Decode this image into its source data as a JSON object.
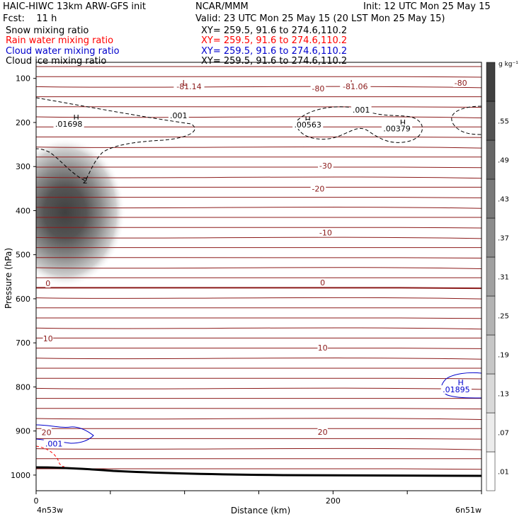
{
  "header": {
    "model": "HAIC-HIWC 13km ARW-GFS init",
    "org": "NCAR/MMM",
    "init": "Init: 12 UTC Mon 25 May 15",
    "fcst": "Fcst:    11 h",
    "valid": "Valid: 23 UTC Mon 25 May 15 (20 LST Mon 25 May 15)",
    "rows": [
      {
        "name": "Snow mixing ratio",
        "xy": "XY= 259.5, 91.6 to 274.6,110.2",
        "color": "#000000"
      },
      {
        "name": "Rain water mixing ratio",
        "xy": "XY= 259.5, 91.6 to 274.6,110.2",
        "color": "#ff0000"
      },
      {
        "name": "Cloud water mixing ratio",
        "xy": "XY= 259.5, 91.6 to 274.6,110.2",
        "color": "#0000cc"
      },
      {
        "name": "Cloud ice mixing ratio",
        "xy": "XY= 259.5, 91.6 to 274.6,110.2",
        "color": "#000000"
      }
    ]
  },
  "colorbar": {
    "unit": "g kg⁻¹",
    "levels": [
      ".01",
      ".07",
      ".13",
      ".19",
      ".25",
      ".31",
      ".37",
      ".43",
      ".49",
      ".55"
    ]
  },
  "chart_data": {
    "type": "contour cross-section",
    "xlabel": "Distance (km)",
    "ylabel": "Pressure (hPa)",
    "xlim": [
      0,
      300
    ],
    "ylim": [
      1050,
      50
    ],
    "y_scale": "log-pressure",
    "x_ticks": [
      0,
      200
    ],
    "y_ticks": [
      100,
      200,
      300,
      400,
      500,
      600,
      700,
      800,
      900,
      1000
    ],
    "x_endpoints": [
      "4n53w",
      "6n51w"
    ],
    "temperature_labels": [
      {
        "text": "-81.14",
        "x": 103,
        "p": 118
      },
      {
        "text": "L",
        "x": 100,
        "p": 110
      },
      {
        "text": "-80",
        "x": 190,
        "p": 123
      },
      {
        "text": "L",
        "x": 213,
        "p": 110
      },
      {
        "text": "-81.06",
        "x": 215,
        "p": 118
      },
      {
        "text": "-80",
        "x": 286,
        "p": 110
      },
      {
        "text": "-30",
        "x": 195,
        "p": 298
      },
      {
        "text": "-20",
        "x": 190,
        "p": 350
      },
      {
        "text": "-10",
        "x": 195,
        "p": 450
      },
      {
        "text": "0",
        "x": 8,
        "p": 565
      },
      {
        "text": "0",
        "x": 193,
        "p": 563
      },
      {
        "text": "10",
        "x": 8,
        "p": 690
      },
      {
        "text": "10",
        "x": 193,
        "p": 711
      },
      {
        "text": "20",
        "x": 7,
        "p": 903
      },
      {
        "text": "20",
        "x": 193,
        "p": 902
      }
    ],
    "ice_labels": [
      {
        "text": "H",
        "x": 27,
        "p": 189
      },
      {
        "text": ".01698",
        "x": 22,
        "p": 203
      },
      {
        "text": ".001",
        "x": 96,
        "p": 184
      },
      {
        "text": "H",
        "x": 183,
        "p": 193
      },
      {
        "text": ".00563",
        "x": 183,
        "p": 205
      },
      {
        "text": ".001",
        "x": 219,
        "p": 171
      },
      {
        "text": "H",
        "x": 247,
        "p": 200
      },
      {
        "text": ".00379",
        "x": 243,
        "p": 214
      }
    ],
    "cloud_water_labels": [
      {
        "text": "H",
        "x": 286,
        "p": 790
      },
      {
        "text": ".01895",
        "x": 283,
        "p": 806
      },
      {
        "text": ".001",
        "x": 12,
        "p": 929
      }
    ],
    "snow_max": {
      "text": "2",
      "x": 33,
      "p": 332
    }
  }
}
